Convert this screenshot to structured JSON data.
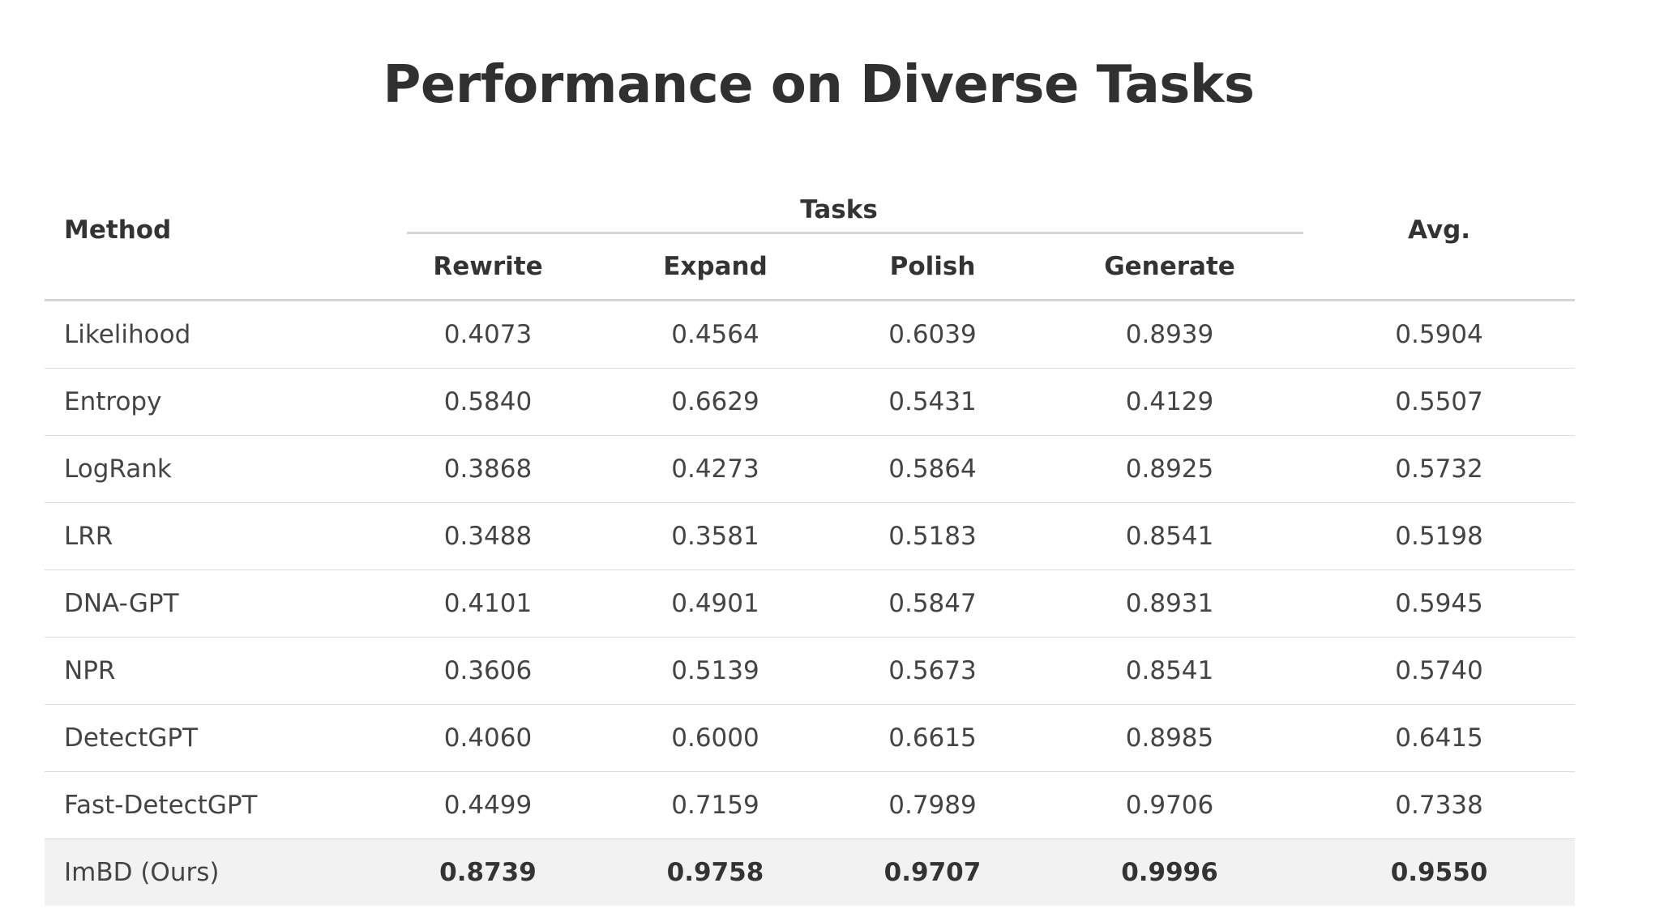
{
  "title": "Performance on Diverse Tasks",
  "table": {
    "method_header": "Method",
    "group_header": "Tasks",
    "avg_header": "Avg.",
    "task_headers": [
      "Rewrite",
      "Expand",
      "Polish",
      "Generate"
    ],
    "rows": [
      {
        "method": "Likelihood",
        "values": [
          "0.4073",
          "0.4564",
          "0.6039",
          "0.8939",
          "0.5904"
        ]
      },
      {
        "method": "Entropy",
        "values": [
          "0.5840",
          "0.6629",
          "0.5431",
          "0.4129",
          "0.5507"
        ]
      },
      {
        "method": "LogRank",
        "values": [
          "0.3868",
          "0.4273",
          "0.5864",
          "0.8925",
          "0.5732"
        ]
      },
      {
        "method": "LRR",
        "values": [
          "0.3488",
          "0.3581",
          "0.5183",
          "0.8541",
          "0.5198"
        ]
      },
      {
        "method": "DNA-GPT",
        "values": [
          "0.4101",
          "0.4901",
          "0.5847",
          "0.8931",
          "0.5945"
        ]
      },
      {
        "method": "NPR",
        "values": [
          "0.3606",
          "0.5139",
          "0.5673",
          "0.8541",
          "0.5740"
        ]
      },
      {
        "method": "DetectGPT",
        "values": [
          "0.4060",
          "0.6000",
          "0.6615",
          "0.8985",
          "0.6415"
        ]
      },
      {
        "method": "Fast-DetectGPT",
        "values": [
          "0.4499",
          "0.7159",
          "0.7989",
          "0.9706",
          "0.7338"
        ]
      },
      {
        "method": "ImBD (Ours)",
        "values": [
          "0.8739",
          "0.9758",
          "0.9707",
          "0.9996",
          "0.9550"
        ]
      }
    ],
    "highlight_row": "ImBD (Ours)",
    "colors": {
      "text": "#333333",
      "rule": "#d6d6d6",
      "highlight_bg": "#f2f2f2"
    }
  }
}
